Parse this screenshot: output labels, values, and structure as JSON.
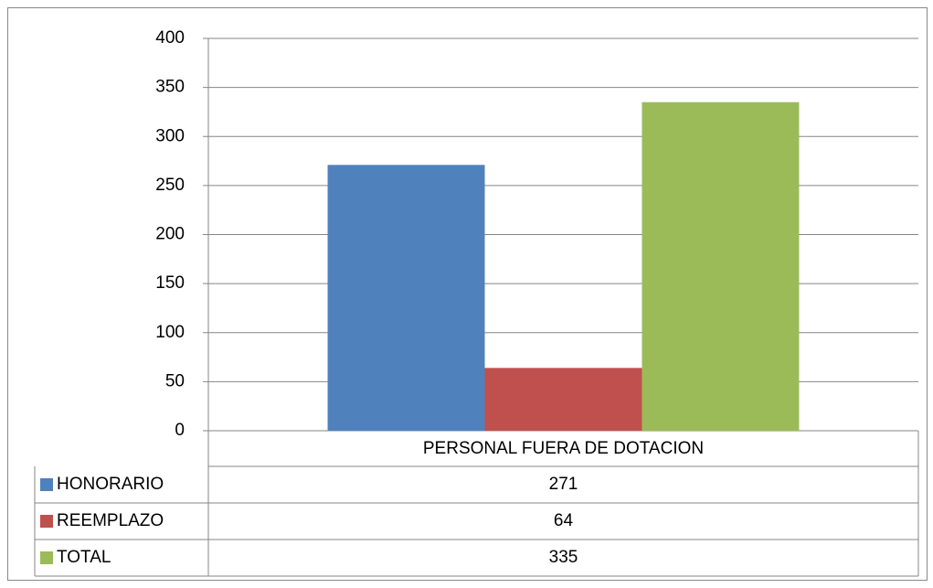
{
  "chart_data": {
    "type": "bar",
    "categories": [
      "PERSONAL FUERA DE DOTACION"
    ],
    "series": [
      {
        "name": "HONORARIO",
        "color": "#4f81bd",
        "values": [
          271
        ]
      },
      {
        "name": "REEMPLAZO",
        "color": "#c0504d",
        "values": [
          64
        ]
      },
      {
        "name": "TOTAL",
        "color": "#9bbb59",
        "values": [
          335
        ]
      }
    ],
    "ylim": [
      0,
      400
    ],
    "yticks": [
      0,
      50,
      100,
      150,
      200,
      250,
      300,
      350,
      400
    ],
    "grid": true
  }
}
